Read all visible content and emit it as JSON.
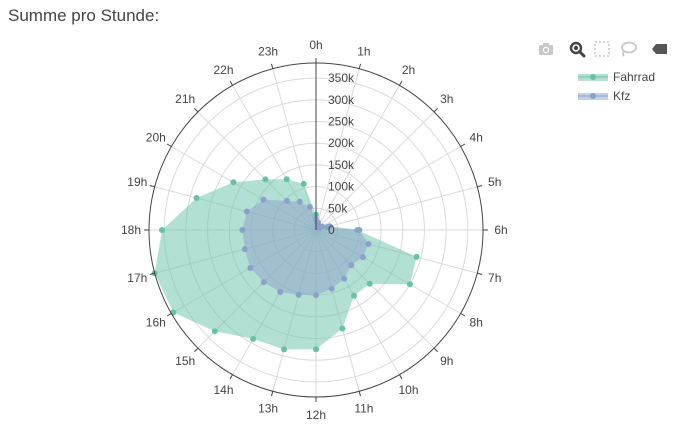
{
  "title": "Summe pro Stunde:",
  "modebar": {
    "icons": [
      "camera-icon",
      "zoom-icon",
      "box-select-icon",
      "lasso-icon",
      "hover-toggle-icon"
    ],
    "active_color": "#444444",
    "inactive_color": "#c8c8c8"
  },
  "chart_data": {
    "type": "polar-area",
    "title": "Summe pro Stunde:",
    "theta_categories": [
      "0h",
      "1h",
      "2h",
      "3h",
      "4h",
      "5h",
      "6h",
      "7h",
      "8h",
      "9h",
      "10h",
      "11h",
      "12h",
      "13h",
      "14h",
      "15h",
      "16h",
      "17h",
      "18h",
      "19h",
      "20h",
      "21h",
      "22h",
      "23h"
    ],
    "direction": "clockwise",
    "rotation": "0h at top",
    "radial_ticks": [
      "0",
      "50k",
      "100k",
      "150k",
      "200k",
      "250k",
      "300k",
      "350k"
    ],
    "radial_range": [
      0,
      385000
    ],
    "grid": true,
    "legend_position": "top-right",
    "series": [
      {
        "name": "Fahrrad",
        "color": "#66c2a5",
        "fill_opacity": 0.5,
        "values": [
          35000,
          18000,
          10000,
          8000,
          9000,
          27000,
          95000,
          240000,
          250000,
          175000,
          175000,
          235000,
          275000,
          285000,
          290000,
          330000,
          380000,
          385000,
          355000,
          285000,
          220000,
          165000,
          135000,
          110000
        ]
      },
      {
        "name": "Kfz",
        "color": "#8da0cb",
        "fill_opacity": 0.5,
        "values": [
          25000,
          15000,
          10000,
          10000,
          16000,
          33000,
          100000,
          125000,
          125000,
          115000,
          130000,
          140000,
          150000,
          155000,
          165000,
          170000,
          175000,
          170000,
          170000,
          165000,
          140000,
          95000,
          75000,
          55000
        ]
      }
    ]
  }
}
